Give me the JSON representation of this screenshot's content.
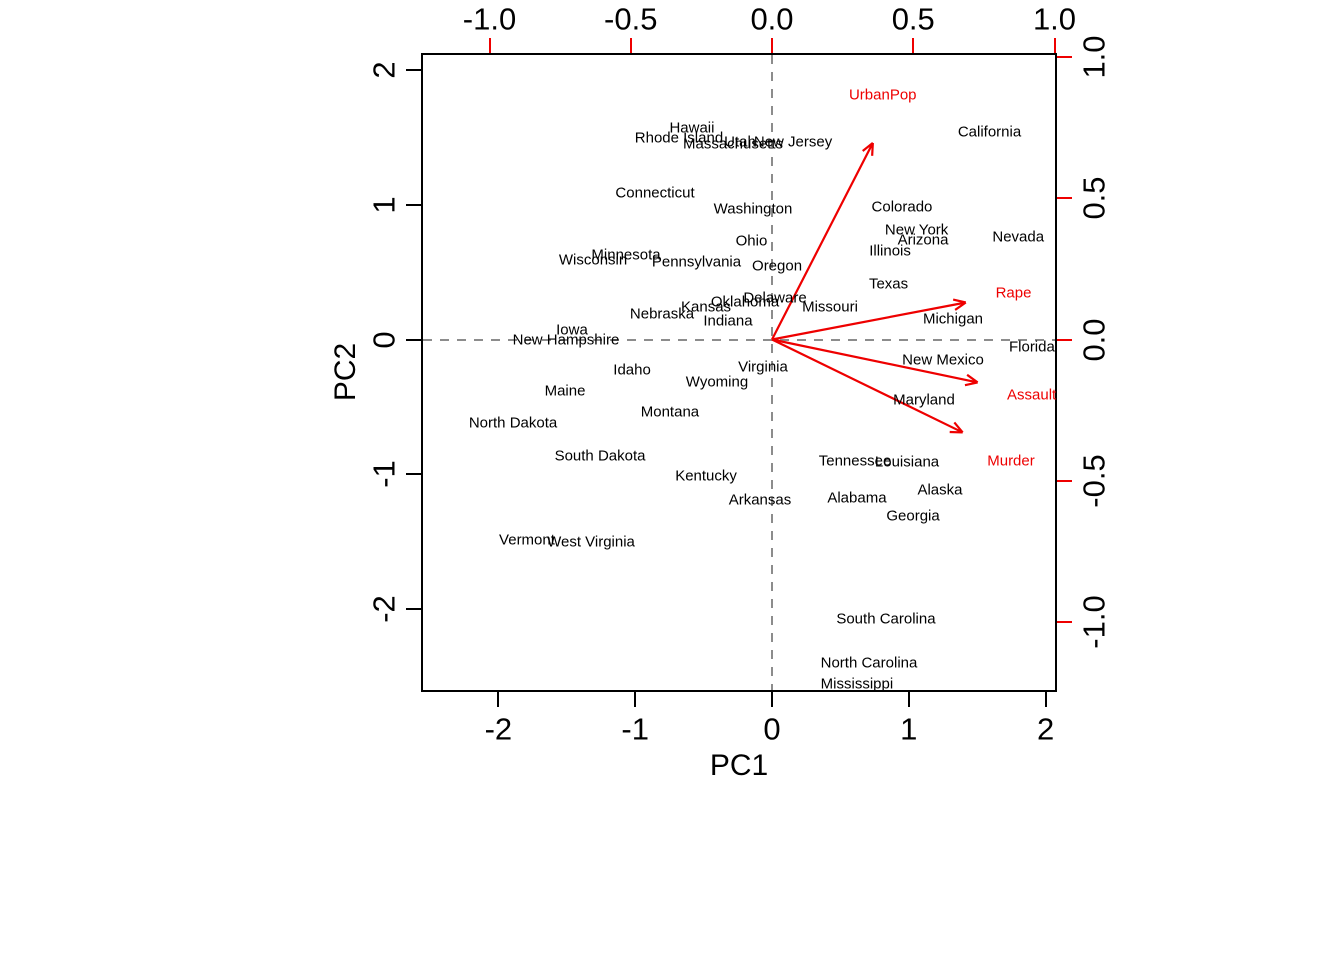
{
  "chart_data": {
    "type": "scatter",
    "subtype": "pca_biplot",
    "title": "",
    "score_axes": {
      "xlabel": "PC1",
      "ylabel": "PC2",
      "x_ticks": [
        "-2",
        "-1",
        "0",
        "1",
        "2"
      ],
      "y_ticks": [
        "2",
        "1",
        "0",
        "-1",
        "-2"
      ],
      "xlim": [
        -2.56,
        2.07
      ],
      "ylim": [
        -2.6,
        2.12
      ],
      "grid": "zero-lines-dashed"
    },
    "loading_axes": {
      "position": "top-right",
      "x_ticks": [
        "-1.0",
        "-0.5",
        "0.0",
        "0.5",
        "1.0"
      ],
      "y_ticks": [
        "1.0",
        "0.5",
        "0.0",
        "-0.5",
        "-1.0"
      ],
      "tick_color": "#ee0000",
      "label_color": "#000000"
    },
    "colors": {
      "points": "#000000",
      "vectors": "#ee0000",
      "zero_lines": "#8c8c8c"
    },
    "points": [
      {
        "name": "Hawaii",
        "x": -0.585,
        "y": 1.575
      },
      {
        "name": "Rhode Island",
        "x": -0.68,
        "y": 1.5
      },
      {
        "name": "Massachusetts",
        "x": -0.285,
        "y": 1.456
      },
      {
        "name": "Utah",
        "x": -0.234,
        "y": 1.464
      },
      {
        "name": "New Jersey",
        "x": 0.154,
        "y": 1.464
      },
      {
        "name": "California",
        "x": 1.59,
        "y": 1.545
      },
      {
        "name": "Connecticut",
        "x": -0.855,
        "y": 1.088
      },
      {
        "name": "Washington",
        "x": -0.139,
        "y": 0.973
      },
      {
        "name": "Colorado",
        "x": 0.95,
        "y": 0.984
      },
      {
        "name": "New York",
        "x": 1.057,
        "y": 0.817
      },
      {
        "name": "Arizona",
        "x": 1.104,
        "y": 0.74
      },
      {
        "name": "Illinois",
        "x": 0.863,
        "y": 0.66
      },
      {
        "name": "Nevada",
        "x": 1.8,
        "y": 0.765
      },
      {
        "name": "Ohio",
        "x": -0.15,
        "y": 0.732
      },
      {
        "name": "Minnesota",
        "x": -1.067,
        "y": 0.631
      },
      {
        "name": "Wisconsin",
        "x": -1.308,
        "y": 0.594
      },
      {
        "name": "Pennsylvania",
        "x": -0.552,
        "y": 0.579
      },
      {
        "name": "Oregon",
        "x": 0.037,
        "y": 0.546
      },
      {
        "name": "Texas",
        "x": 0.852,
        "y": 0.412
      },
      {
        "name": "Delaware",
        "x": 0.022,
        "y": 0.312
      },
      {
        "name": "Oklahoma",
        "x": -0.197,
        "y": 0.275
      },
      {
        "name": "Kansas",
        "x": -0.482,
        "y": 0.245
      },
      {
        "name": "Missouri",
        "x": 0.424,
        "y": 0.238
      },
      {
        "name": "Nebraska",
        "x": -0.804,
        "y": 0.186
      },
      {
        "name": "Michigan",
        "x": 1.323,
        "y": 0.149
      },
      {
        "name": "Indiana",
        "x": -0.322,
        "y": 0.141
      },
      {
        "name": "Iowa",
        "x": -1.462,
        "y": 0.067
      },
      {
        "name": "New Hampshire",
        "x": -1.506,
        "y": 0.0
      },
      {
        "name": "Florida",
        "x": 1.9,
        "y": -0.059
      },
      {
        "name": "New Mexico",
        "x": 1.25,
        "y": -0.149
      },
      {
        "name": "Virginia",
        "x": -0.066,
        "y": -0.201
      },
      {
        "name": "Idaho",
        "x": -1.023,
        "y": -0.23
      },
      {
        "name": "Wyoming",
        "x": -0.402,
        "y": -0.319
      },
      {
        "name": "Maine",
        "x": -1.513,
        "y": -0.379
      },
      {
        "name": "Maryland",
        "x": 1.111,
        "y": -0.446
      },
      {
        "name": "Montana",
        "x": -0.746,
        "y": -0.542
      },
      {
        "name": "North Dakota",
        "x": -1.893,
        "y": -0.617
      },
      {
        "name": "South Dakota",
        "x": -1.257,
        "y": -0.869
      },
      {
        "name": "Tennessee",
        "x": 0.607,
        "y": -0.902
      },
      {
        "name": "Louisiana",
        "x": 0.987,
        "y": -0.91
      },
      {
        "name": "Kentucky",
        "x": -0.482,
        "y": -1.011
      },
      {
        "name": "Alaska",
        "x": 1.228,
        "y": -1.118
      },
      {
        "name": "Arkansas",
        "x": -0.088,
        "y": -1.196
      },
      {
        "name": "Alabama",
        "x": 0.621,
        "y": -1.178
      },
      {
        "name": "Georgia",
        "x": 1.031,
        "y": -1.311
      },
      {
        "name": "Vermont",
        "x": -1.791,
        "y": -1.493
      },
      {
        "name": "West Virginia",
        "x": -1.323,
        "y": -1.508
      },
      {
        "name": "South Carolina",
        "x": 0.833,
        "y": -2.08
      },
      {
        "name": "North Carolina",
        "x": 0.709,
        "y": -2.4
      },
      {
        "name": "Mississippi",
        "x": 0.621,
        "y": -2.556
      }
    ],
    "vectors": [
      {
        "name": "UrbanPop",
        "tip_x": 0.357,
        "tip_y": 0.696,
        "label_x": 0.392,
        "label_y": 0.866
      },
      {
        "name": "Rape",
        "tip_x": 0.686,
        "tip_y": 0.131,
        "label_x": 0.855,
        "label_y": 0.163
      },
      {
        "name": "Assault",
        "tip_x": 0.728,
        "tip_y": -0.152,
        "label_x": 0.919,
        "label_y": -0.198
      },
      {
        "name": "Murder",
        "tip_x": 0.675,
        "tip_y": -0.329,
        "label_x": 0.846,
        "label_y": -0.43
      }
    ]
  }
}
